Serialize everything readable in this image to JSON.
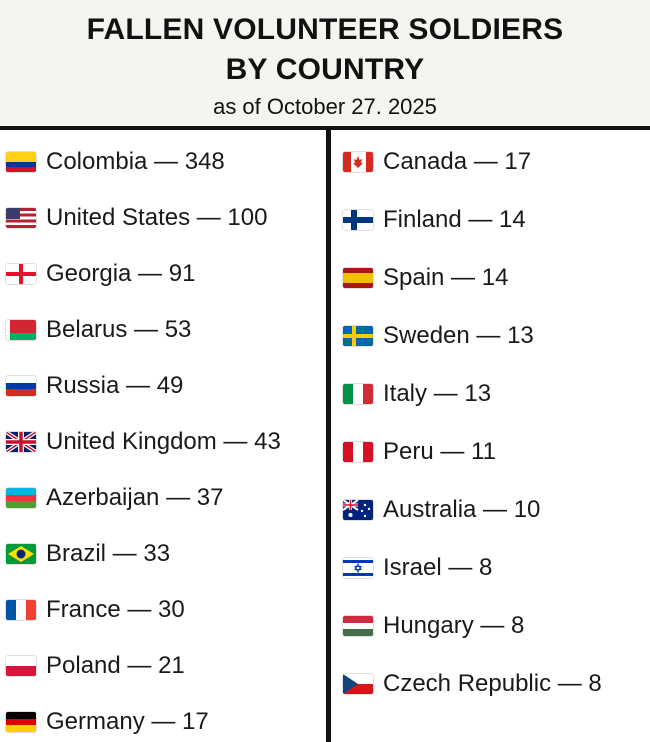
{
  "header": {
    "title_line1": "FALLEN VOLUNTEER SOLDIERS",
    "title_line2": "BY COUNTRY",
    "subtitle": "as of October 27. 2025"
  },
  "left_column": [
    {
      "label": "Colombia — 348",
      "flag": "colombia-flag-icon"
    },
    {
      "label": "United States — 100",
      "flag": "united-states-flag-icon"
    },
    {
      "label": "Georgia — 91",
      "flag": "georgia-flag-icon"
    },
    {
      "label": "Belarus — 53",
      "flag": "belarus-flag-icon"
    },
    {
      "label": "Russia — 49",
      "flag": "russia-flag-icon"
    },
    {
      "label": "United Kingdom — 43",
      "flag": "united-kingdom-flag-icon"
    },
    {
      "label": "Azerbaijan — 37",
      "flag": "azerbaijan-flag-icon"
    },
    {
      "label": "Brazil — 33",
      "flag": "brazil-flag-icon"
    },
    {
      "label": "France — 30",
      "flag": "france-flag-icon"
    },
    {
      "label": "Poland — 21",
      "flag": "poland-flag-icon"
    },
    {
      "label": "Germany — 17",
      "flag": "germany-flag-icon"
    }
  ],
  "right_column": [
    {
      "label": "Canada — 17",
      "flag": "canada-flag-icon"
    },
    {
      "label": "Finland — 14",
      "flag": "finland-flag-icon"
    },
    {
      "label": "Spain — 14",
      "flag": "spain-flag-icon"
    },
    {
      "label": "Sweden — 13",
      "flag": "sweden-flag-icon"
    },
    {
      "label": "Italy — 13",
      "flag": "italy-flag-icon"
    },
    {
      "label": "Peru — 11",
      "flag": "peru-flag-icon"
    },
    {
      "label": "Australia — 10",
      "flag": "australia-flag-icon"
    },
    {
      "label": "Israel — 8",
      "flag": "israel-flag-icon"
    },
    {
      "label": "Hungary — 8",
      "flag": "hungary-flag-icon"
    },
    {
      "label": "Czech Republic — 8",
      "flag": "czech-republic-flag-icon"
    }
  ]
}
